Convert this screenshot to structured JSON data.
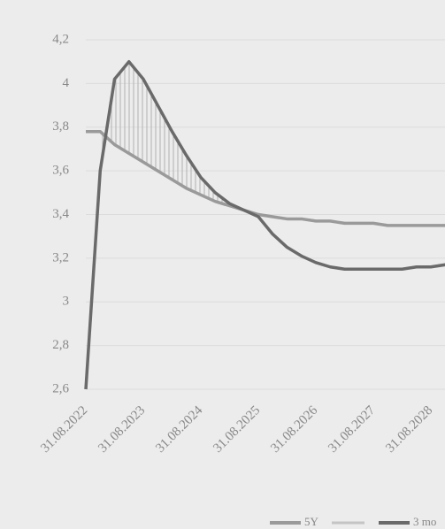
{
  "chart_data": {
    "type": "line",
    "categories": [
      "31.08.2022",
      null,
      null,
      null,
      "31.08.2023",
      null,
      null,
      null,
      "31.08.2024",
      null,
      null,
      null,
      "31.08.2025",
      null,
      null,
      null,
      "31.08.2026",
      null,
      null,
      null,
      "31.08.2027",
      null,
      null,
      null,
      "31.08.2028",
      null
    ],
    "series": [
      {
        "name": "5Y",
        "color": "#9a9a9a",
        "values": [
          3.78,
          3.78,
          3.72,
          3.68,
          3.64,
          3.6,
          3.56,
          3.52,
          3.49,
          3.46,
          3.44,
          3.42,
          3.4,
          3.39,
          3.38,
          3.38,
          3.37,
          3.37,
          3.36,
          3.36,
          3.36,
          3.35,
          3.35,
          3.35,
          3.35,
          3.35
        ]
      },
      {
        "name": "3 mo",
        "color": "#6a6a6a",
        "values": [
          2.6,
          3.6,
          4.02,
          4.1,
          4.02,
          3.9,
          3.78,
          3.67,
          3.57,
          3.5,
          3.45,
          3.42,
          3.39,
          3.31,
          3.25,
          3.21,
          3.18,
          3.16,
          3.15,
          3.15,
          3.15,
          3.15,
          3.15,
          3.16,
          3.16,
          3.17
        ]
      }
    ],
    "ylim": [
      2.6,
      4.2
    ],
    "yticks": [
      {
        "value": 2.6,
        "label": "2,6"
      },
      {
        "value": 2.8,
        "label": "2,8"
      },
      3,
      {
        "value": 3.2,
        "label": "3,2"
      },
      {
        "value": 3.4,
        "label": "3,4"
      },
      {
        "value": 3.6,
        "label": "3,6"
      },
      {
        "value": 3.8,
        "label": "3,8"
      },
      4,
      {
        "value": 4.2,
        "label": "4,2"
      }
    ],
    "grid": true
  }
}
